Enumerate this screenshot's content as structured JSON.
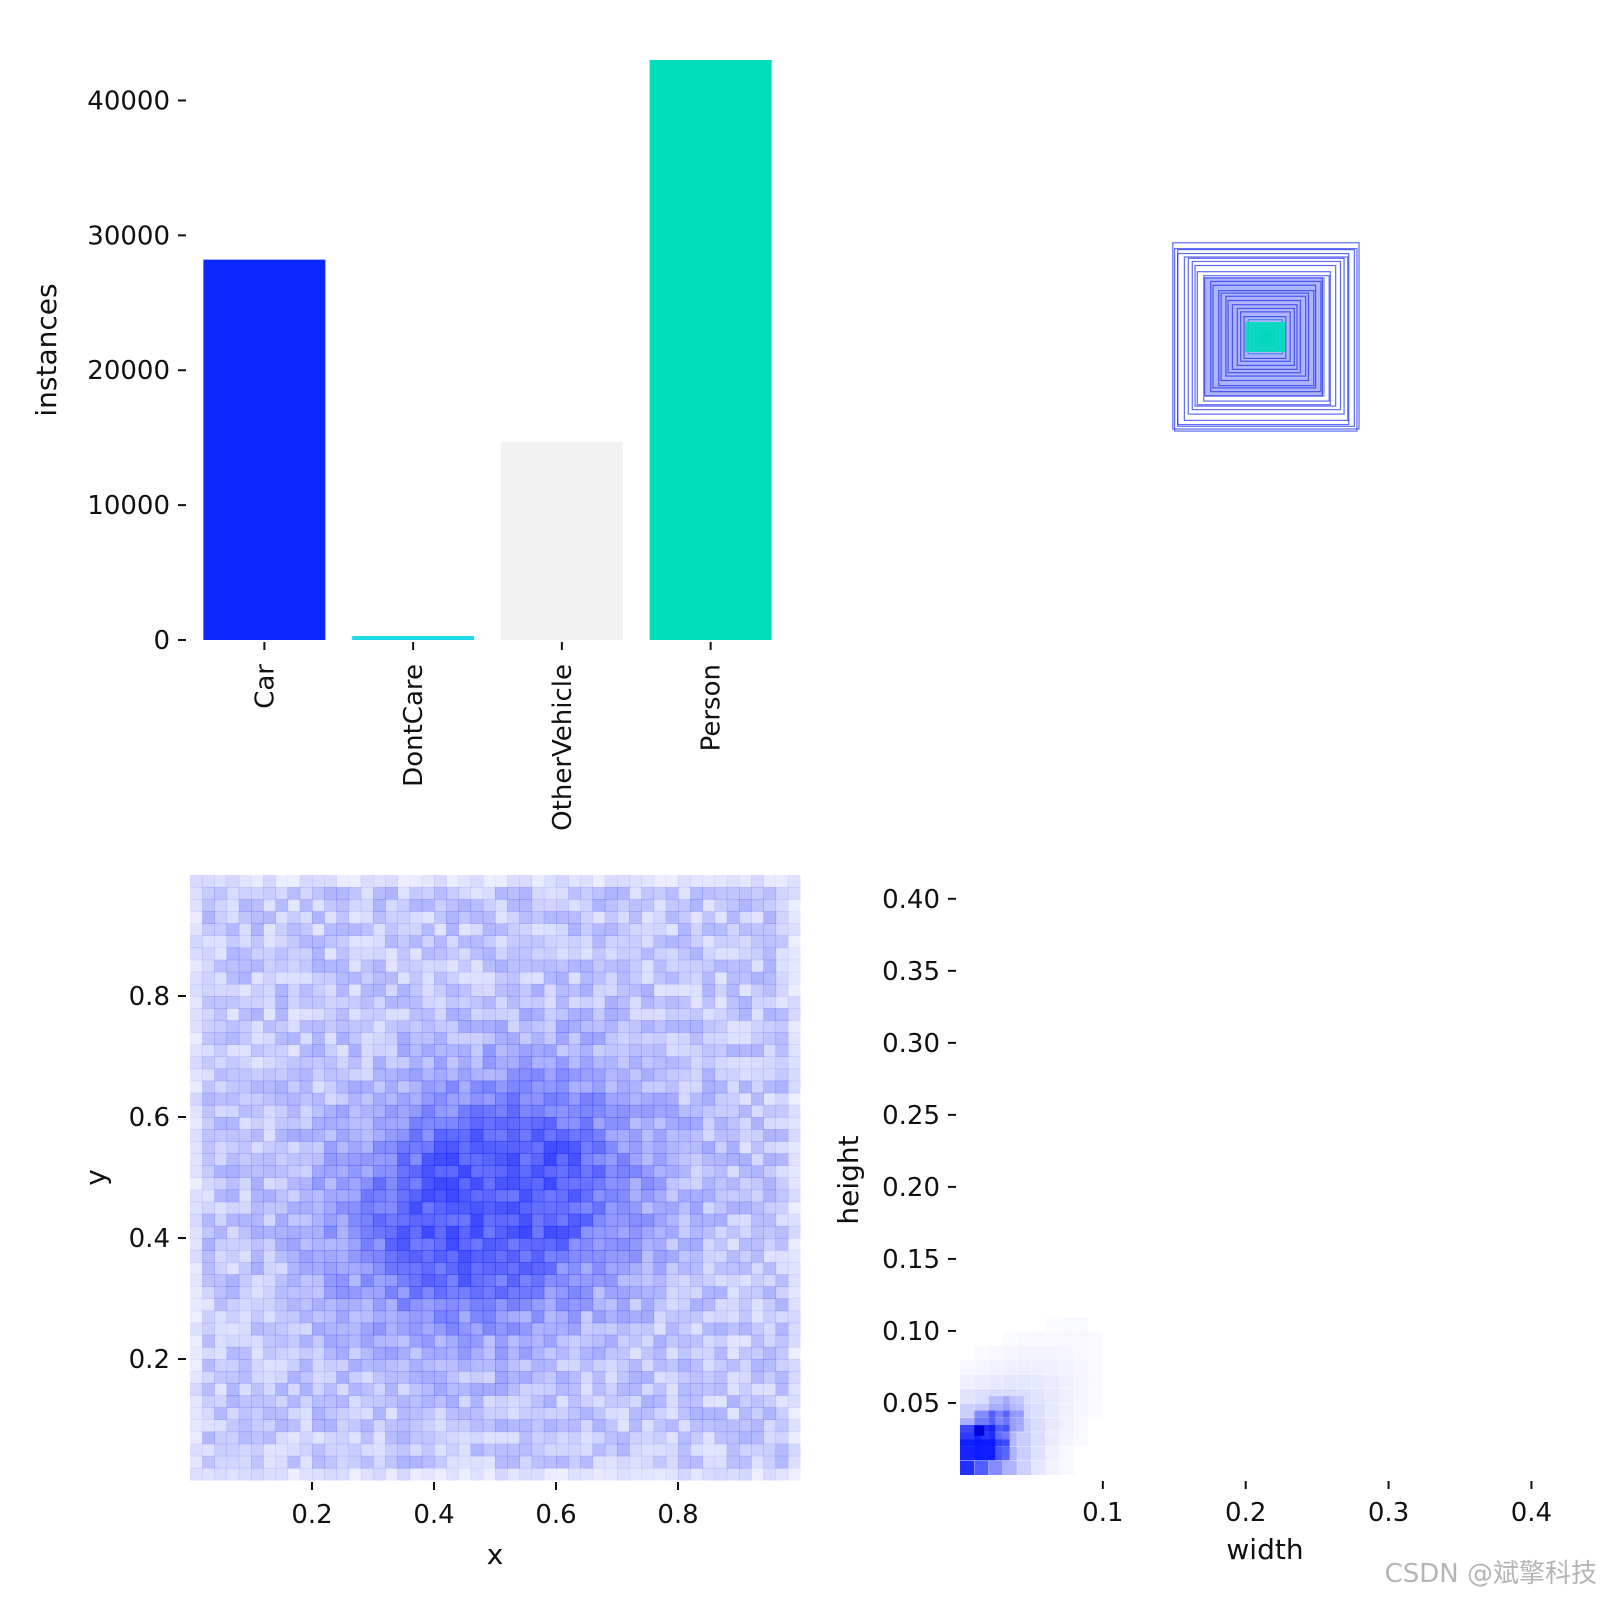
{
  "watermark": "CSDN @斌擎科技",
  "colors": {
    "Car": "#0a28ff",
    "DontCare": "#1ed9e6",
    "OtherVehicle": "#f2f2f2",
    "Person": "#00ddbb",
    "heat": "#0a1aff"
  },
  "chart_data": [
    {
      "type": "bar",
      "categories": [
        "Car",
        "DontCare",
        "OtherVehicle",
        "Person"
      ],
      "values": [
        28200,
        300,
        14700,
        43000
      ],
      "ylabel": "instances",
      "xlabel": "",
      "ylim": [
        0,
        43000
      ],
      "yticks": [
        0,
        10000,
        20000,
        30000,
        40000
      ],
      "grid": false
    },
    {
      "type": "box-overlay",
      "description_axes": "none",
      "center": [
        0.5,
        0.5
      ],
      "box_sizes": [
        0.98,
        0.96,
        0.93,
        0.9,
        0.86,
        0.82,
        0.78,
        0.74,
        0.7,
        0.66,
        0.62,
        0.58,
        0.54,
        0.5,
        0.46,
        0.42,
        0.38,
        0.34,
        0.3,
        0.26,
        0.22,
        0.18,
        0.14,
        0.1,
        0.06
      ]
    },
    {
      "type": "heatmap",
      "xlabel": "x",
      "ylabel": "y",
      "xlim": [
        0,
        1
      ],
      "ylim": [
        0,
        1
      ],
      "xticks": [
        0.2,
        0.4,
        0.6,
        0.8
      ],
      "yticks": [
        0.2,
        0.4,
        0.6,
        0.8
      ],
      "bins": 50,
      "density_peaks": [
        {
          "x": 0.41,
          "y": 0.42
        },
        {
          "x": 0.58,
          "y": 0.5
        }
      ]
    },
    {
      "type": "heatmap",
      "xlabel": "width",
      "ylabel": "height",
      "xlim": [
        0,
        0.42
      ],
      "ylim": [
        0,
        0.42
      ],
      "xticks": [
        0.1,
        0.2,
        0.3,
        0.4
      ],
      "yticks": [
        0.05,
        0.1,
        0.15,
        0.2,
        0.25,
        0.3,
        0.35,
        0.4
      ],
      "density_peak": {
        "width": 0.015,
        "height": 0.025
      }
    }
  ]
}
